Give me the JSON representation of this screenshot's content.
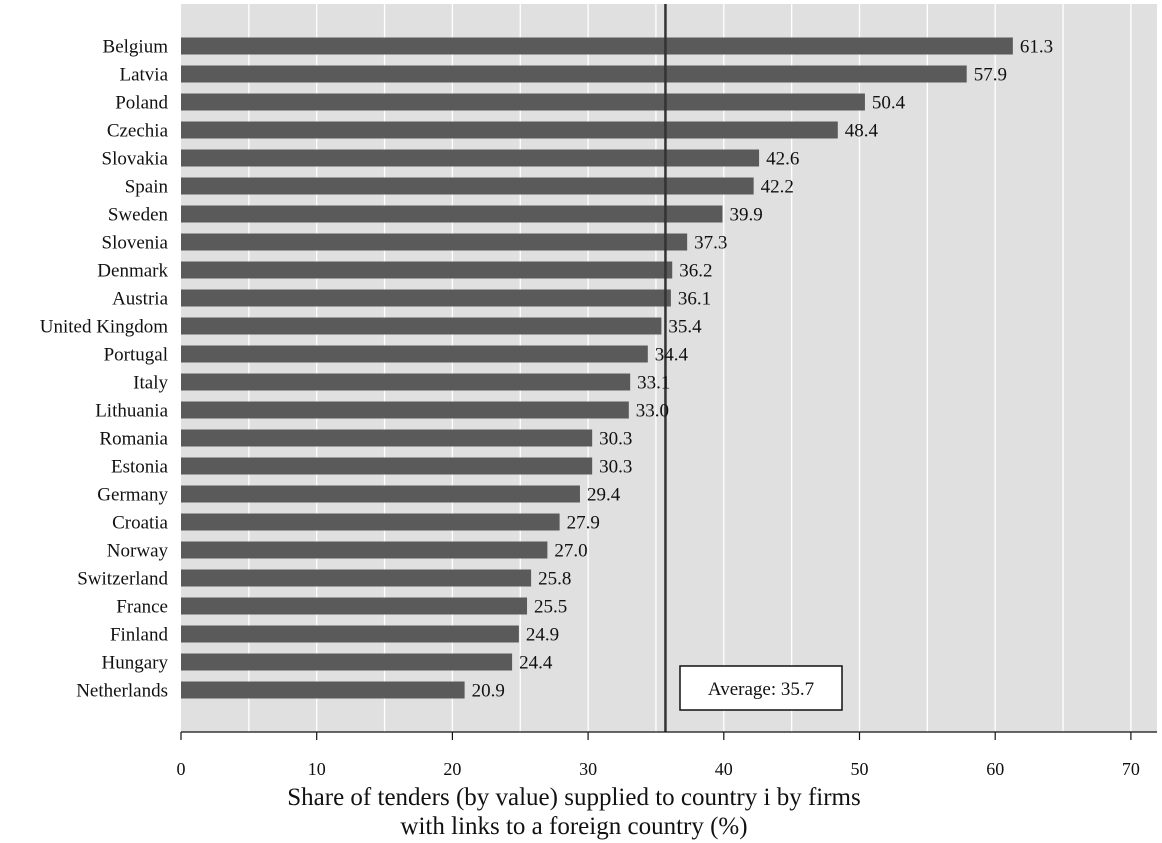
{
  "chart_data": {
    "type": "bar",
    "orientation": "horizontal",
    "categories": [
      "Belgium",
      "Latvia",
      "Poland",
      "Czechia",
      "Slovakia",
      "Spain",
      "Sweden",
      "Slovenia",
      "Denmark",
      "Austria",
      "United Kingdom",
      "Portugal",
      "Italy",
      "Lithuania",
      "Romania",
      "Estonia",
      "Germany",
      "Croatia",
      "Norway",
      "Switzerland",
      "France",
      "Finland",
      "Hungary",
      "Netherlands"
    ],
    "values": [
      61.3,
      57.9,
      50.4,
      48.4,
      42.6,
      42.2,
      39.9,
      37.3,
      36.2,
      36.1,
      35.4,
      34.4,
      33.1,
      33.0,
      30.3,
      30.3,
      29.4,
      27.9,
      27.0,
      25.8,
      25.5,
      24.9,
      24.4,
      20.9
    ],
    "value_labels": [
      "61.3",
      "57.9",
      "50.4",
      "48.4",
      "42.6",
      "42.2",
      "39.9",
      "37.3",
      "36.2",
      "36.1",
      "35.4",
      "34.4",
      "33.1",
      "33.0",
      "30.3",
      "30.3",
      "29.4",
      "27.9",
      "27.0",
      "25.8",
      "25.5",
      "24.9",
      "24.4",
      "20.9"
    ],
    "xlabel_lines": [
      "Share of tenders (by value) supplied to country i by firms",
      "with links to a foreign country (%)"
    ],
    "xlim": [
      0,
      71
    ],
    "xticks": [
      0,
      10,
      20,
      30,
      40,
      50,
      60,
      70
    ],
    "grid": "vertical",
    "reference_line": {
      "value": 35.7,
      "label": "Average: 35.7"
    },
    "colors": {
      "bar": "#5a5a5a",
      "plot_bg": "#e0e0e0",
      "grid": "#ffffff",
      "reference_line": "#333333"
    }
  }
}
